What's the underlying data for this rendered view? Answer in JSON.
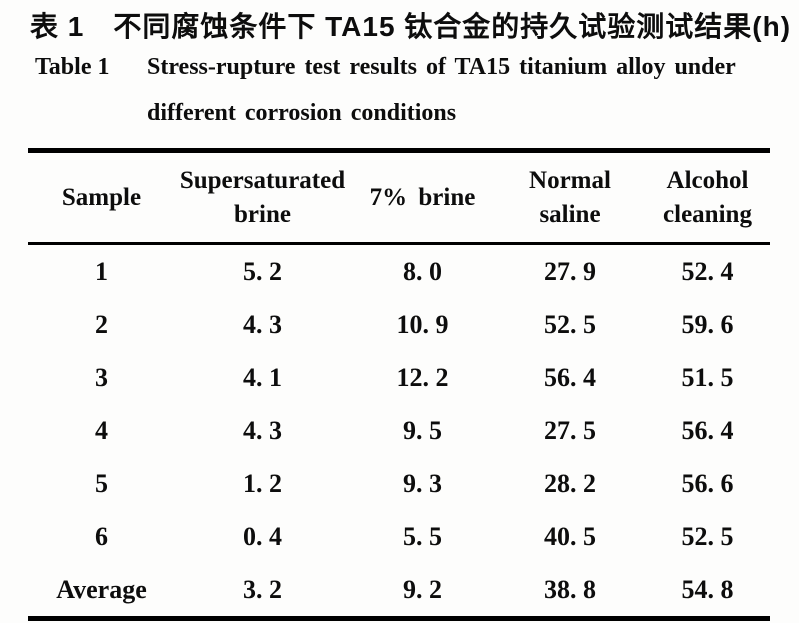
{
  "caption": {
    "zh": "表 1　不同腐蚀条件下 TA15 钛合金的持久试验测试结果(h)",
    "en_label": "Table 1",
    "en_line1": "Stress-rupture test results of TA15 titanium alloy under",
    "en_line2": "different corrosion conditions"
  },
  "table": {
    "columns": [
      {
        "label": "Sample"
      },
      {
        "label": "Supersaturated\nbrine"
      },
      {
        "label": "7% brine"
      },
      {
        "label": "Normal\nsaline"
      },
      {
        "label": "Alcohol\ncleaning"
      }
    ],
    "rows": [
      {
        "cells": [
          "1",
          "5. 2",
          "8. 0",
          "27. 9",
          "52. 4"
        ]
      },
      {
        "cells": [
          "2",
          "4. 3",
          "10. 9",
          "52. 5",
          "59. 6"
        ]
      },
      {
        "cells": [
          "3",
          "4. 1",
          "12. 2",
          "56. 4",
          "51. 5"
        ]
      },
      {
        "cells": [
          "4",
          "4. 3",
          "9. 5",
          "27. 5",
          "56. 4"
        ]
      },
      {
        "cells": [
          "5",
          "1. 2",
          "9. 3",
          "28. 2",
          "56. 6"
        ]
      },
      {
        "cells": [
          "6",
          "0. 4",
          "5. 5",
          "40. 5",
          "52. 5"
        ]
      },
      {
        "cells": [
          "Average",
          "3. 2",
          "9. 2",
          "38. 8",
          "54. 8"
        ]
      }
    ]
  },
  "chart_data": {
    "type": "table",
    "title_zh": "表1 不同腐蚀条件下TA15钛合金的持久试验测试结果(h)",
    "title_en": "Table 1 Stress-rupture test results of TA15 titanium alloy under different corrosion conditions",
    "unit": "h",
    "columns": [
      "Sample",
      "Supersaturated brine",
      "7% brine",
      "Normal saline",
      "Alcohol cleaning"
    ],
    "rows": [
      [
        "1",
        5.2,
        8.0,
        27.9,
        52.4
      ],
      [
        "2",
        4.3,
        10.9,
        52.5,
        59.6
      ],
      [
        "3",
        4.1,
        12.2,
        56.4,
        51.5
      ],
      [
        "4",
        4.3,
        9.5,
        27.5,
        56.4
      ],
      [
        "5",
        1.2,
        9.3,
        28.2,
        56.6
      ],
      [
        "6",
        0.4,
        5.5,
        40.5,
        52.5
      ],
      [
        "Average",
        3.2,
        9.2,
        38.8,
        54.8
      ]
    ]
  }
}
